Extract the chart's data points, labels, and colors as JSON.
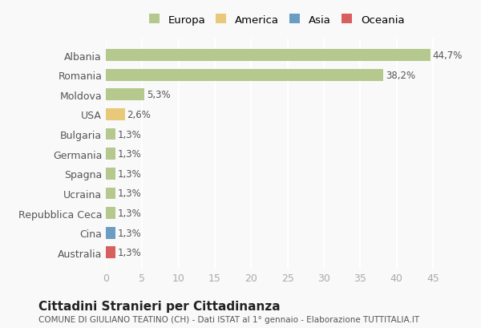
{
  "countries": [
    "Albania",
    "Romania",
    "Moldova",
    "USA",
    "Bulgaria",
    "Germania",
    "Spagna",
    "Ucraina",
    "Repubblica Ceca",
    "Cina",
    "Australia"
  ],
  "values": [
    44.7,
    38.2,
    5.3,
    2.6,
    1.3,
    1.3,
    1.3,
    1.3,
    1.3,
    1.3,
    1.3
  ],
  "labels": [
    "44,7%",
    "38,2%",
    "5,3%",
    "2,6%",
    "1,3%",
    "1,3%",
    "1,3%",
    "1,3%",
    "1,3%",
    "1,3%",
    "1,3%"
  ],
  "bar_colors": [
    "#b5c98e",
    "#b5c98e",
    "#b5c98e",
    "#e8c97a",
    "#b5c98e",
    "#b5c98e",
    "#b5c98e",
    "#b5c98e",
    "#b5c98e",
    "#6b9dc2",
    "#d95f5f"
  ],
  "legend_labels": [
    "Europa",
    "America",
    "Asia",
    "Oceania"
  ],
  "legend_colors": [
    "#b5c98e",
    "#e8c97a",
    "#6b9dc2",
    "#d95f5f"
  ],
  "xlim": [
    0,
    47
  ],
  "xticks": [
    0,
    5,
    10,
    15,
    20,
    25,
    30,
    35,
    40,
    45
  ],
  "title": "Cittadini Stranieri per Cittadinanza",
  "subtitle": "COMUNE DI GIULIANO TEATINO (CH) - Dati ISTAT al 1° gennaio - Elaborazione TUTTITALIA.IT",
  "background_color": "#f9f9f9",
  "grid_color": "#ffffff",
  "bar_height": 0.6
}
